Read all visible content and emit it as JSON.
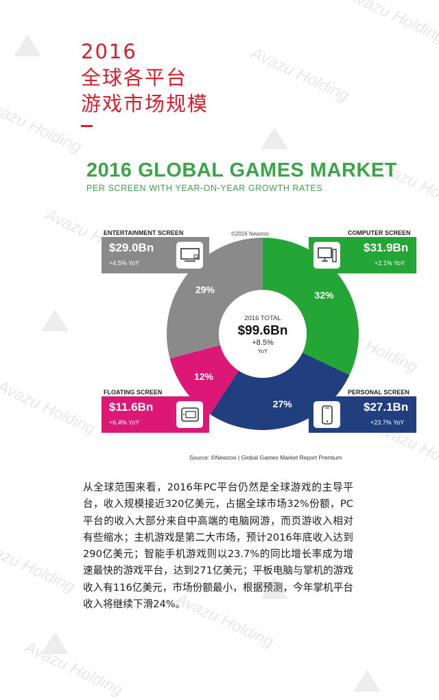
{
  "page_title": [
    "2016",
    "全球各平台",
    "游戏市场规模"
  ],
  "watermark": {
    "text": "Avazu Holding"
  },
  "infographic": {
    "heading": "2016 GLOBAL GAMES MARKET",
    "subheading": "PER SCREEN WITH YEAR-ON-YEAR GROWTH RATES",
    "credit": "©2016 Newzoo",
    "source": "Source: ©Newzoo | Global Games Market Report Premium"
  },
  "chart_data": {
    "type": "pie",
    "total": {
      "label": "2016 TOTAL",
      "value": "$99.6Bn",
      "growth": "+8.5%",
      "unit": "YoY"
    },
    "series": [
      {
        "name": "COMPUTER SCREEN",
        "value": 31.9,
        "amount": "$31.9Bn",
        "growth": "+2.1% YoY",
        "share": "32%",
        "color": "#24a637"
      },
      {
        "name": "PERSONAL SCREEN",
        "value": 27.1,
        "amount": "$27.1Bn",
        "growth": "+23.7% YoY",
        "share": "27%",
        "color": "#213f7f"
      },
      {
        "name": "FLOATING SCREEN",
        "value": 11.6,
        "amount": "$11.6Bn",
        "growth": "+6.4% YoY",
        "share": "12%",
        "color": "#dd1776"
      },
      {
        "name": "ENTERTAINMENT SCREEN",
        "value": 29.0,
        "amount": "$29.0Bn",
        "growth": "+4.5% YoY",
        "share": "29%",
        "color": "#8a8a8a"
      }
    ]
  },
  "body_text": "从全球范围来看，2016年PC平台仍然是全球游戏的主导平台，收入规模接近320亿美元，占据全球市场32%份额，PC平台的收入大部分来自中高端的电脑网游，而页游收入相对有些缩水；主机游戏是第二大市场，预计2016年底收入达到290亿美元；智能手机游戏则以23.7%的同比增长率成为增速最快的游戏平台，达到271亿美元；平板电脑与掌机的游戏收入有116亿美元，市场份额最小，根据预测，今年掌机平台收入将继续下滑24%。"
}
